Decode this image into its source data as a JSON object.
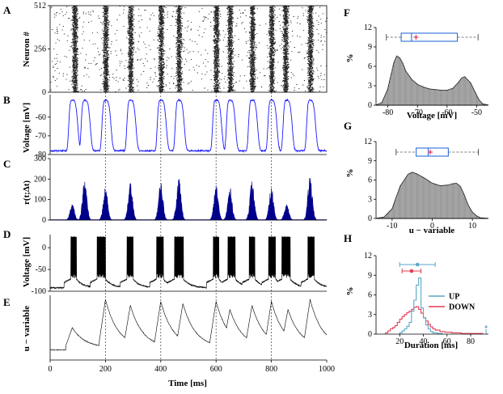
{
  "chart_data": [
    {
      "id": "A",
      "panel_label": "A",
      "type": "raster",
      "ylabel": "Neuron #",
      "ylim": [
        0,
        512
      ],
      "yticks": [
        "512",
        "256",
        "0"
      ],
      "xlim": [
        0,
        1000
      ],
      "burst_centers_ms": [
        88,
        200,
        290,
        400,
        465,
        600,
        650,
        730,
        800,
        850,
        940
      ],
      "colors": {
        "marks": "#000000"
      }
    },
    {
      "id": "B",
      "panel_label": "B",
      "type": "line",
      "ylabel": "Voltage [mV]",
      "ylim": [
        -80,
        -48
      ],
      "yticks": [
        "-60",
        "-70",
        "-80"
      ],
      "xlim": [
        0,
        1000
      ],
      "peaks_ms": [
        80,
        125,
        200,
        290,
        400,
        465,
        600,
        650,
        730,
        800,
        855,
        940
      ],
      "baseline_mv": -78,
      "peak_mv": -51,
      "colors": {
        "line": "#1a1aff"
      }
    },
    {
      "id": "C",
      "panel_label": "C",
      "type": "area",
      "ylabel": "r(t;Δt)",
      "ylim": [
        0,
        300
      ],
      "yticks": [
        "300",
        "200",
        "100",
        "0"
      ],
      "xlim": [
        0,
        1000
      ],
      "peaks": [
        {
          "t": 80,
          "v": 80
        },
        {
          "t": 125,
          "v": 200
        },
        {
          "t": 200,
          "v": 160
        },
        {
          "t": 290,
          "v": 185
        },
        {
          "t": 400,
          "v": 190
        },
        {
          "t": 465,
          "v": 220
        },
        {
          "t": 600,
          "v": 170
        },
        {
          "t": 650,
          "v": 160
        },
        {
          "t": 730,
          "v": 195
        },
        {
          "t": 800,
          "v": 165
        },
        {
          "t": 855,
          "v": 80
        },
        {
          "t": 940,
          "v": 225
        }
      ],
      "colors": {
        "fill": "#00008b"
      }
    },
    {
      "id": "D",
      "panel_label": "D",
      "type": "line",
      "ylabel": "Voltage [mV]",
      "ylim": [
        -100,
        30
      ],
      "yticks": [
        "0",
        "-50",
        "-100"
      ],
      "xlim": [
        0,
        1000
      ],
      "burst_windows_ms": [
        [
          75,
          95
        ],
        [
          170,
          200
        ],
        [
          278,
          300
        ],
        [
          385,
          410
        ],
        [
          450,
          482
        ],
        [
          590,
          610
        ],
        [
          643,
          670
        ],
        [
          720,
          740
        ],
        [
          790,
          815
        ],
        [
          838,
          868
        ],
        [
          932,
          955
        ]
      ],
      "colors": {
        "line": "#000000"
      }
    },
    {
      "id": "E",
      "panel_label": "E",
      "type": "line",
      "ylabel": "u − variable",
      "ylim": [
        0,
        32
      ],
      "yticks": [],
      "xlim": [
        0,
        1000
      ],
      "xticks": [
        "0",
        "200",
        "400",
        "600",
        "800",
        "1000"
      ],
      "xlabel": "Time [ms]",
      "peaks": [
        {
          "t": 80,
          "v": 16
        },
        {
          "t": 200,
          "v": 30
        },
        {
          "t": 290,
          "v": 27
        },
        {
          "t": 400,
          "v": 29
        },
        {
          "t": 480,
          "v": 28
        },
        {
          "t": 600,
          "v": 29
        },
        {
          "t": 650,
          "v": 25
        },
        {
          "t": 730,
          "v": 27
        },
        {
          "t": 800,
          "v": 29
        },
        {
          "t": 860,
          "v": 25
        },
        {
          "t": 940,
          "v": 30
        }
      ],
      "colors": {
        "line": "#000000"
      }
    },
    {
      "id": "F",
      "panel_label": "F",
      "type": "area",
      "xlabel": "Voltage [mV]",
      "ylabel": "%",
      "xlim": [
        -84,
        -46
      ],
      "ylim": [
        0,
        12
      ],
      "xticks": [
        "-80",
        "-70",
        "-60",
        "-50"
      ],
      "yticks": [
        "0",
        "3",
        "6",
        "9",
        "12"
      ],
      "x": [
        -84,
        -82,
        -80,
        -78,
        -77,
        -76,
        -75,
        -74,
        -72,
        -70,
        -68,
        -66,
        -64,
        -62,
        -60,
        -58,
        -56,
        -55,
        -54,
        -52,
        -50,
        -49,
        -48,
        -46
      ],
      "y": [
        0,
        0.4,
        2.5,
        6.5,
        7.6,
        7.3,
        6.5,
        5.3,
        4.0,
        3.2,
        2.8,
        2.5,
        2.4,
        2.3,
        2.3,
        2.6,
        3.6,
        4.2,
        4.4,
        3.4,
        1.5,
        0.7,
        0.2,
        0
      ],
      "box": {
        "whisker_low": -80.5,
        "q1": -75.5,
        "median": -72,
        "mean": -70.5,
        "q3": -56.5,
        "whisker_high": -49.5
      },
      "colors": {
        "fill": "#8c8c8c",
        "box": "#1a5fd6",
        "mean": "#e8112d"
      }
    },
    {
      "id": "G",
      "panel_label": "G",
      "type": "area",
      "xlabel": "u − variable",
      "ylabel": "%",
      "xlim": [
        -14,
        14
      ],
      "ylim": [
        0,
        12
      ],
      "xticks": [
        "-10",
        "0",
        "10"
      ],
      "yticks": [
        "0",
        "3",
        "6",
        "9",
        "12"
      ],
      "x": [
        -14,
        -12,
        -10,
        -8,
        -6,
        -5,
        -4,
        -2,
        0,
        2,
        4,
        5,
        6,
        7,
        8,
        9,
        10,
        11,
        12,
        14
      ],
      "y": [
        0,
        0.2,
        1.5,
        5.0,
        6.9,
        7.2,
        7.0,
        6.3,
        5.5,
        5.1,
        5.2,
        5.4,
        5.5,
        5.0,
        3.6,
        2.0,
        1.0,
        0.4,
        0.1,
        0
      ],
      "box": {
        "whisker_low": -9,
        "q1": -4,
        "median": -1,
        "mean": -0.5,
        "q3": 4,
        "whisker_high": 11.5
      },
      "colors": {
        "fill": "#8c8c8c",
        "box": "#1a5fd6",
        "mean": "#e8112d"
      }
    },
    {
      "id": "H",
      "panel_label": "H",
      "type": "line",
      "xlabel": "Duration [ms]",
      "ylabel": "%",
      "xlim": [
        0,
        95
      ],
      "ylim": [
        0,
        12
      ],
      "xticks": [
        "20",
        "40",
        "60",
        "80"
      ],
      "yticks": [
        "0",
        "3",
        "6",
        "9",
        "12"
      ],
      "legend": [
        "UP",
        "DOWN"
      ],
      "legend_position": "right",
      "series": [
        {
          "name": "UP",
          "color": "#5aa7c7",
          "steps": [
            [
              20,
              0.2
            ],
            [
              22,
              0.5
            ],
            [
              24,
              0.8
            ],
            [
              26,
              1.2
            ],
            [
              28,
              1.8
            ],
            [
              30,
              3.5
            ],
            [
              32,
              5.2
            ],
            [
              34,
              7.5
            ],
            [
              36,
              8.6
            ],
            [
              38,
              4.0
            ],
            [
              40,
              2.5
            ],
            [
              42,
              1.4
            ],
            [
              44,
              0.8
            ],
            [
              46,
              0.4
            ],
            [
              48,
              0.2
            ],
            [
              52,
              0.1
            ],
            [
              56,
              0
            ]
          ],
          "mean": 35,
          "ci": [
            20,
            50
          ],
          "extra_marker": 93
        },
        {
          "name": "DOWN",
          "color": "#e23b52",
          "steps": [
            [
              8,
              0.2
            ],
            [
              10,
              0.5
            ],
            [
              12,
              0.8
            ],
            [
              14,
              1.0
            ],
            [
              16,
              1.3
            ],
            [
              18,
              1.8
            ],
            [
              20,
              2.3
            ],
            [
              22,
              2.7
            ],
            [
              24,
              3.0
            ],
            [
              26,
              3.3
            ],
            [
              28,
              3.5
            ],
            [
              30,
              3.8
            ],
            [
              32,
              4.1
            ],
            [
              34,
              4.2
            ],
            [
              36,
              3.8
            ],
            [
              38,
              3.2
            ],
            [
              40,
              2.5
            ],
            [
              42,
              2.0
            ],
            [
              44,
              1.5
            ],
            [
              46,
              1.1
            ],
            [
              48,
              0.8
            ],
            [
              50,
              0.6
            ],
            [
              54,
              0.4
            ],
            [
              58,
              0.3
            ],
            [
              64,
              0.2
            ],
            [
              72,
              0.1
            ],
            [
              80,
              0.1
            ],
            [
              90,
              0
            ]
          ],
          "mean": 30,
          "ci": [
            22,
            38
          ]
        }
      ]
    }
  ]
}
